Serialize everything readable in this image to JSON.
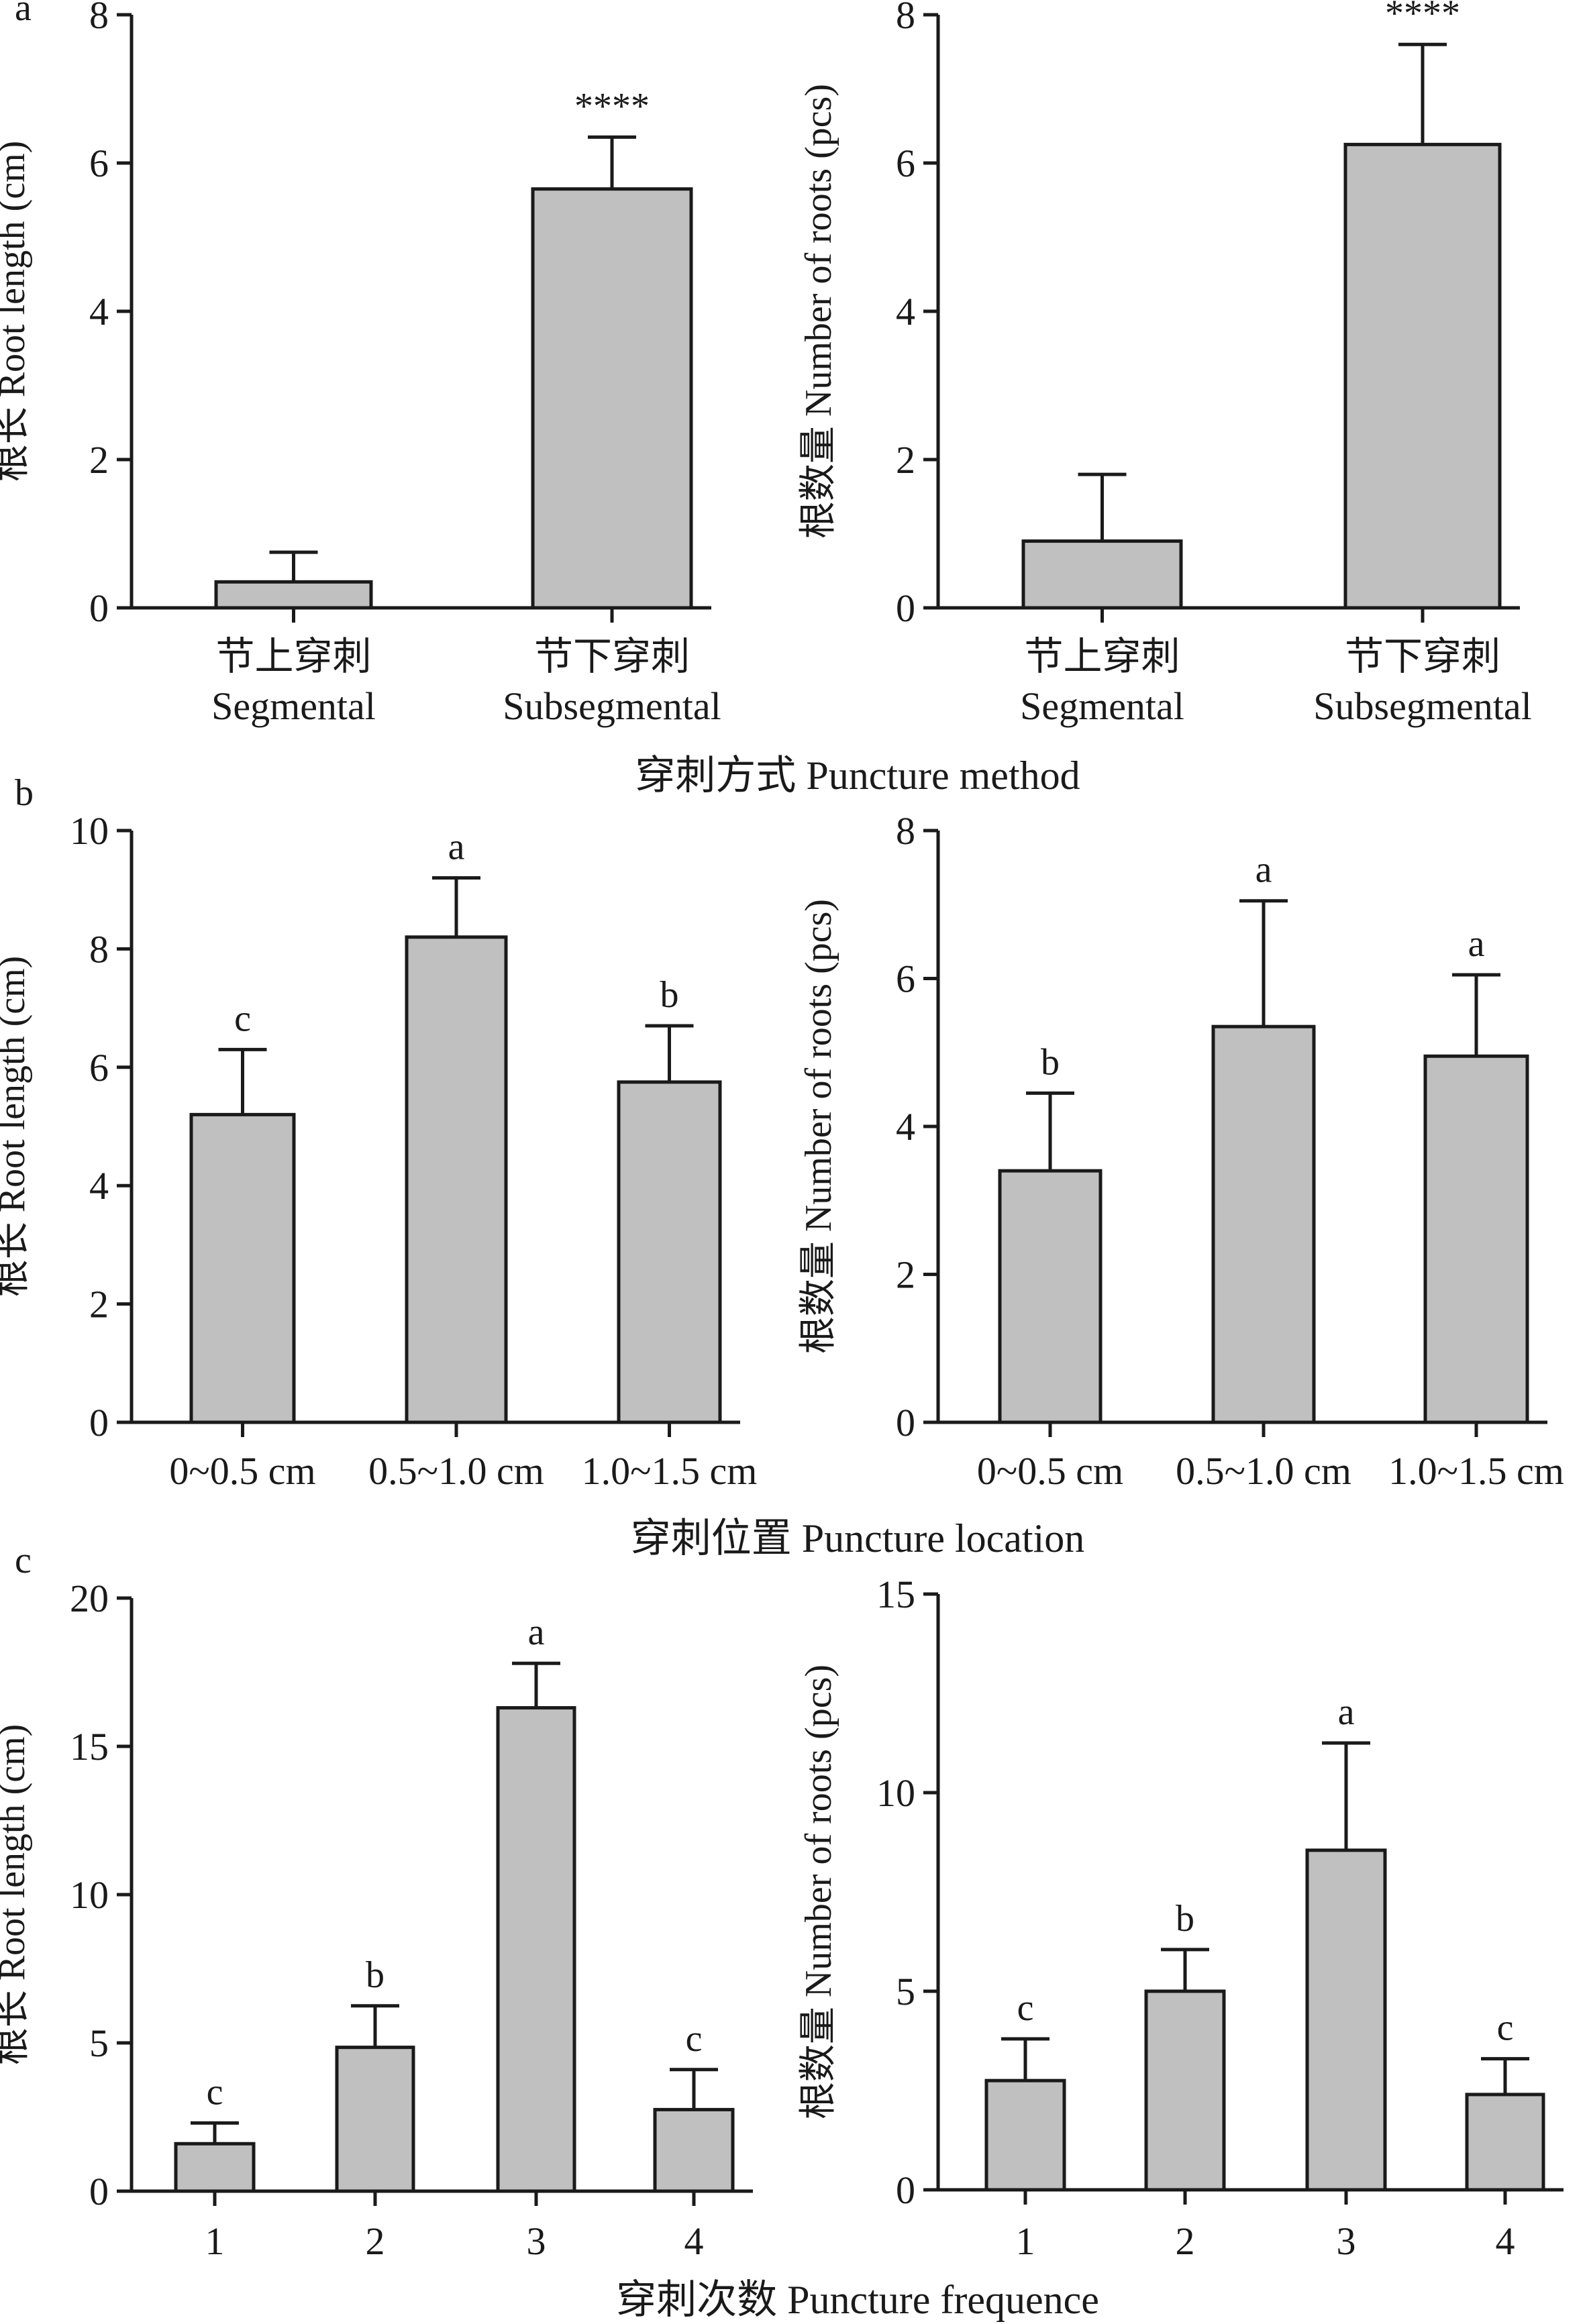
{
  "chart_data": [
    {
      "panel": "a",
      "type": "bar",
      "title": "",
      "xlabel": "",
      "ylabel": "根长 Root length (cm)",
      "ylim": [
        0,
        8
      ],
      "yticks": [
        0,
        2,
        4,
        6,
        8
      ],
      "categories": [
        [
          "节上穿刺",
          "Segmental"
        ],
        [
          "节下穿刺",
          "Subsegmental"
        ]
      ],
      "values": [
        0.35,
        5.65
      ],
      "errors": [
        0.4,
        0.7
      ],
      "annotations": [
        "",
        "****"
      ]
    },
    {
      "panel": "",
      "type": "bar",
      "title": "",
      "xlabel": "",
      "ylabel": "根数量 Number of roots (pcs)",
      "ylim": [
        0,
        8
      ],
      "yticks": [
        0,
        2,
        4,
        6,
        8
      ],
      "categories": [
        [
          "节上穿刺",
          "Segmental"
        ],
        [
          "节下穿刺",
          "Subsegmental"
        ]
      ],
      "values": [
        0.9,
        6.25
      ],
      "errors": [
        0.9,
        1.35
      ],
      "annotations": [
        "",
        "****"
      ]
    },
    {
      "panel": "b",
      "type": "bar",
      "title": "",
      "xlabel": "",
      "ylabel": "根长 Root length (cm)",
      "ylim": [
        0,
        10
      ],
      "yticks": [
        0,
        2,
        4,
        6,
        8,
        10
      ],
      "categories": [
        [
          "0~0.5 cm"
        ],
        [
          "0.5~1.0 cm"
        ],
        [
          "1.0~1.5 cm"
        ]
      ],
      "values": [
        5.2,
        8.2,
        5.75
      ],
      "errors": [
        1.1,
        1.0,
        0.95
      ],
      "annotations": [
        "c",
        "a",
        "b"
      ]
    },
    {
      "panel": "",
      "type": "bar",
      "title": "",
      "xlabel": "",
      "ylabel": "根数量 Number of roots (pcs)",
      "ylim": [
        0,
        8
      ],
      "yticks": [
        0,
        2,
        4,
        6,
        8
      ],
      "categories": [
        [
          "0~0.5 cm"
        ],
        [
          "0.5~1.0 cm"
        ],
        [
          "1.0~1.5 cm"
        ]
      ],
      "values": [
        3.4,
        5.35,
        4.95
      ],
      "errors": [
        1.05,
        1.7,
        1.1
      ],
      "annotations": [
        "b",
        "a",
        "a"
      ]
    },
    {
      "panel": "c",
      "type": "bar",
      "title": "",
      "xlabel": "",
      "ylabel": "根长 Root length (cm)",
      "ylim": [
        0,
        20
      ],
      "yticks": [
        0,
        5,
        10,
        15,
        20
      ],
      "categories": [
        [
          "1"
        ],
        [
          "2"
        ],
        [
          "3"
        ],
        [
          "4"
        ]
      ],
      "values": [
        1.6,
        4.85,
        16.3,
        2.75
      ],
      "errors": [
        0.7,
        1.4,
        1.5,
        1.35
      ],
      "annotations": [
        "c",
        "b",
        "a",
        "c"
      ]
    },
    {
      "panel": "",
      "type": "bar",
      "title": "",
      "xlabel": "",
      "ylabel": "根数量 Number of roots (pcs)",
      "ylim": [
        0,
        15
      ],
      "yticks": [
        0,
        5,
        10,
        15
      ],
      "categories": [
        [
          "1"
        ],
        [
          "2"
        ],
        [
          "3"
        ],
        [
          "4"
        ]
      ],
      "values": [
        2.75,
        5.0,
        8.55,
        2.4
      ],
      "errors": [
        1.05,
        1.05,
        2.7,
        0.9
      ],
      "annotations": [
        "c",
        "b",
        "a",
        "c"
      ]
    }
  ],
  "group_titles": [
    "穿刺方式 Puncture method",
    "穿刺位置 Puncture location",
    "穿刺次数 Puncture frequence"
  ],
  "colors": {
    "bar_fill": "#c0c0c0",
    "stroke": "#1a1a1a"
  }
}
